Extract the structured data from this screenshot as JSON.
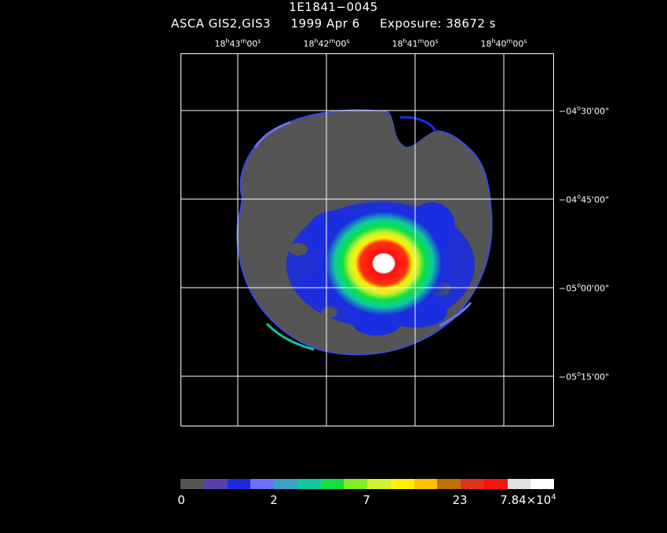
{
  "header": {
    "object": "1E1841−0045",
    "instrument": "ASCA GIS2,GIS3",
    "date": "1999 Apr  6",
    "exposure": "Exposure: 38672 s"
  },
  "ra_ticks": [
    {
      "h": "18",
      "m": "43",
      "s": "00"
    },
    {
      "h": "18",
      "m": "42",
      "s": "00"
    },
    {
      "h": "18",
      "m": "41",
      "s": "00"
    },
    {
      "h": "18",
      "m": "40",
      "s": "00"
    }
  ],
  "dec_ticks": [
    {
      "deg": "−04",
      "min": "30",
      "sec": "00"
    },
    {
      "deg": "−04",
      "min": "45",
      "sec": "00"
    },
    {
      "deg": "−05",
      "min": "00",
      "sec": "00"
    },
    {
      "deg": "−05",
      "min": "15",
      "sec": "00"
    }
  ],
  "colorbar": {
    "labels": [
      "0",
      "2",
      "7",
      "23"
    ],
    "max_mantissa": "7.84×10",
    "max_exponent": "4",
    "colors": [
      "#555555",
      "#5a3fb0",
      "#1a2ee0",
      "#6a70ff",
      "#3aa0c8",
      "#10c8a0",
      "#10e040",
      "#80f020",
      "#d0f030",
      "#fff000",
      "#ffc000",
      "#c07000",
      "#e03020",
      "#ff1010",
      "#e0e0e0",
      "#ffffff"
    ]
  },
  "image": {
    "background_color": "#555555",
    "edge_color": "#3a48e8",
    "source_colors": [
      "#1a2ee0",
      "#10c8a0",
      "#10e040",
      "#fff000",
      "#ff1010",
      "#ffffff"
    ]
  }
}
